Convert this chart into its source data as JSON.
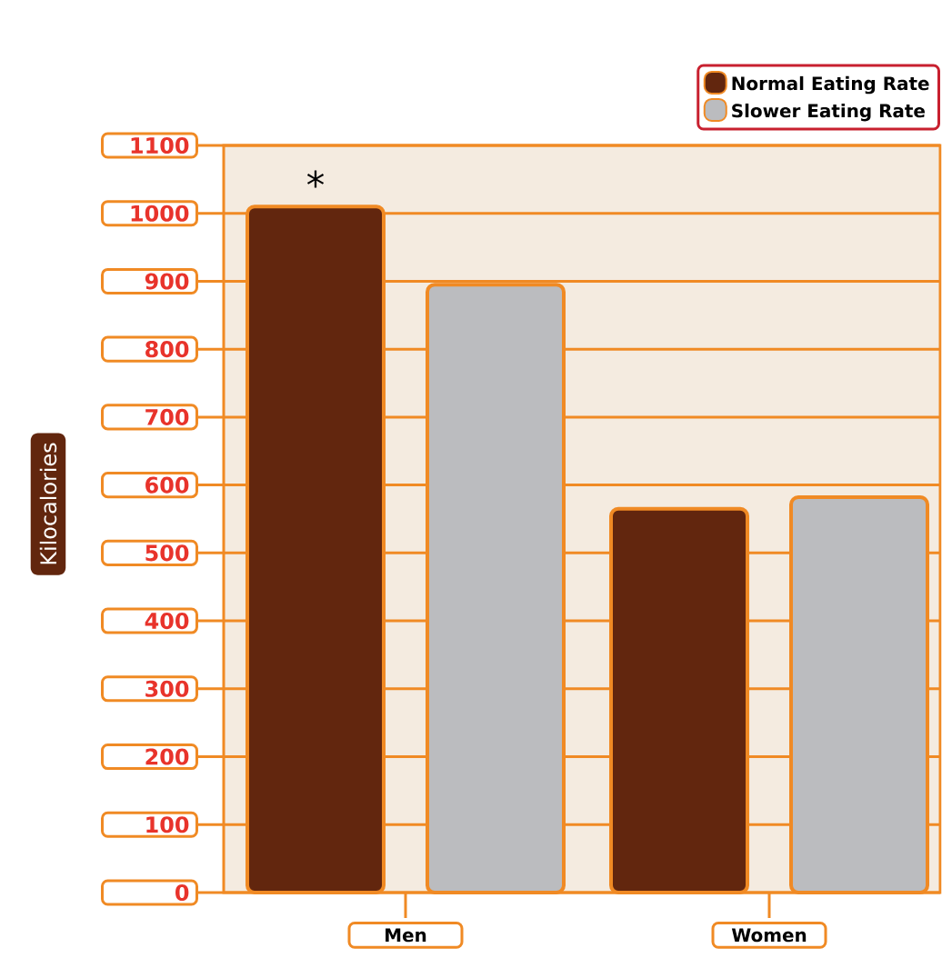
{
  "chart_data": {
    "type": "bar",
    "ylabel": "Kilocalories",
    "categories": [
      "Men",
      "Women"
    ],
    "series": [
      {
        "name": "Normal Eating Rate",
        "color": "#62260e",
        "values": [
          1010,
          565
        ]
      },
      {
        "name": "Slower Eating Rate",
        "color": "#bbbcbf",
        "values": [
          895,
          582
        ]
      }
    ],
    "ylim": [
      0,
      1100
    ],
    "yticks": [
      0,
      100,
      200,
      300,
      400,
      500,
      600,
      700,
      800,
      900,
      1000,
      1100
    ],
    "grid": "y",
    "legend": "top right",
    "annotations": [
      "*"
    ]
  }
}
